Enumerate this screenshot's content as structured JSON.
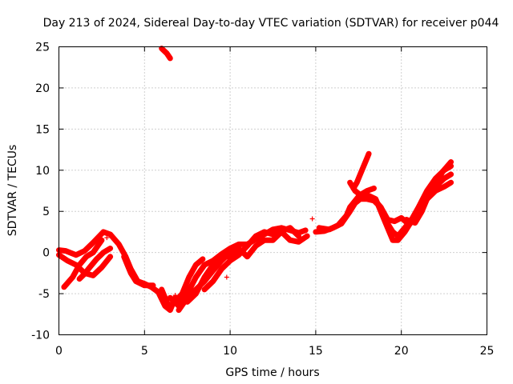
{
  "chart_data": {
    "type": "scatter",
    "title": "Day 213 of 2024, Sidereal Day-to-day VTEC variation (SDTVAR) for receiver p044",
    "xlabel": "GPS time / hours",
    "ylabel": "SDTVAR / TECUs",
    "xlim": [
      0,
      25
    ],
    "ylim": [
      -10,
      25
    ],
    "xticks": [
      "0",
      "5",
      "10",
      "15",
      "20",
      "25"
    ],
    "yticks": [
      "-10",
      "-5",
      "0",
      "5",
      "10",
      "15",
      "20",
      "25"
    ],
    "grid": true,
    "marker": "+",
    "series_color": "#ff0000",
    "tracks": [
      [
        [
          0.0,
          0.3
        ],
        [
          0.4,
          0.2
        ],
        [
          1.0,
          -0.3
        ],
        [
          1.5,
          0.2
        ],
        [
          2.0,
          1.2
        ],
        [
          2.6,
          2.5
        ],
        [
          3.0,
          2.2
        ],
        [
          3.5,
          1.0
        ],
        [
          3.9,
          -0.5
        ],
        [
          4.2,
          -2.0
        ],
        [
          4.6,
          -3.5
        ],
        [
          5.0,
          -3.8
        ],
        [
          5.4,
          -4.2
        ],
        [
          5.8,
          -4.8
        ],
        [
          6.2,
          -6.5
        ],
        [
          6.5,
          -7.0
        ],
        [
          6.8,
          -5.5
        ]
      ],
      [
        [
          0.0,
          -0.3
        ],
        [
          0.5,
          -1.0
        ],
        [
          1.0,
          -1.5
        ],
        [
          1.5,
          -2.5
        ],
        [
          2.0,
          -2.8
        ],
        [
          2.5,
          -1.8
        ],
        [
          3.0,
          -0.5
        ]
      ],
      [
        [
          0.3,
          -4.2
        ],
        [
          0.8,
          -3.0
        ],
        [
          1.2,
          -1.5
        ],
        [
          1.6,
          -0.5
        ],
        [
          2.0,
          0.0
        ],
        [
          2.5,
          1.5
        ]
      ],
      [
        [
          1.2,
          -3.2
        ],
        [
          1.5,
          -2.6
        ],
        [
          1.8,
          -1.8
        ],
        [
          2.2,
          -0.8
        ],
        [
          2.6,
          0.0
        ],
        [
          3.0,
          0.5
        ]
      ],
      [
        [
          3.8,
          -0.5
        ],
        [
          4.0,
          -1.5
        ],
        [
          4.2,
          -2.5
        ],
        [
          4.5,
          -3.5
        ],
        [
          5.0,
          -4.0
        ],
        [
          5.5,
          -4.0
        ]
      ],
      [
        [
          6.0,
          -4.5
        ],
        [
          6.4,
          -6.5
        ],
        [
          6.8,
          -6.0
        ],
        [
          7.2,
          -5.0
        ],
        [
          7.6,
          -3.0
        ],
        [
          8.0,
          -1.5
        ],
        [
          8.4,
          -0.8
        ]
      ],
      [
        [
          6.5,
          -5.5
        ],
        [
          7.0,
          -6.5
        ],
        [
          7.5,
          -5.0
        ],
        [
          8.0,
          -3.0
        ],
        [
          8.5,
          -1.5
        ],
        [
          9.0,
          -1.0
        ],
        [
          9.5,
          -0.2
        ],
        [
          10.0,
          0.5
        ],
        [
          10.5,
          1.0
        ],
        [
          11.0,
          1.0
        ],
        [
          11.5,
          1.6
        ],
        [
          12.0,
          2.2
        ],
        [
          12.5,
          2.8
        ],
        [
          13.0,
          3.0
        ],
        [
          13.5,
          2.7
        ],
        [
          14.0,
          2.4
        ],
        [
          14.4,
          2.7
        ]
      ],
      [
        [
          7.0,
          -7.0
        ],
        [
          7.5,
          -5.5
        ],
        [
          8.0,
          -4.5
        ],
        [
          8.5,
          -3.5
        ],
        [
          9.0,
          -2.2
        ],
        [
          9.5,
          -1.0
        ],
        [
          10.0,
          0.0
        ],
        [
          10.5,
          0.3
        ]
      ],
      [
        [
          7.5,
          -6.0
        ],
        [
          8.0,
          -5.0
        ],
        [
          8.5,
          -3.0
        ],
        [
          9.0,
          -1.5
        ],
        [
          9.5,
          -0.5
        ],
        [
          10.0,
          -0.5
        ],
        [
          10.5,
          0.5
        ],
        [
          11.0,
          -0.5
        ],
        [
          11.5,
          0.8
        ],
        [
          12.0,
          1.5
        ],
        [
          12.5,
          1.5
        ],
        [
          13.0,
          2.5
        ],
        [
          13.5,
          1.5
        ],
        [
          14.0,
          1.3
        ],
        [
          14.5,
          2.0
        ]
      ],
      [
        [
          8.5,
          -4.5
        ],
        [
          9.0,
          -3.5
        ],
        [
          9.5,
          -2.0
        ],
        [
          10.0,
          -1.0
        ],
        [
          10.5,
          -0.3
        ],
        [
          11.0,
          0.8
        ],
        [
          11.5,
          2.0
        ],
        [
          12.0,
          2.5
        ],
        [
          12.5,
          2.2
        ],
        [
          13.0,
          2.6
        ],
        [
          13.5,
          3.0
        ],
        [
          14.0,
          2.0
        ]
      ],
      [
        [
          15.0,
          2.5
        ],
        [
          15.5,
          2.6
        ],
        [
          16.0,
          3.0
        ],
        [
          16.5,
          3.5
        ],
        [
          17.0,
          5.0
        ],
        [
          17.3,
          6.0
        ],
        [
          17.6,
          6.5
        ],
        [
          18.0,
          6.5
        ],
        [
          18.4,
          6.3
        ],
        [
          18.8,
          5.5
        ],
        [
          19.2,
          4.0
        ],
        [
          19.6,
          3.8
        ],
        [
          20.0,
          4.2
        ],
        [
          20.4,
          3.5
        ],
        [
          20.8,
          4.5
        ]
      ],
      [
        [
          15.2,
          3.0
        ],
        [
          15.8,
          2.8
        ],
        [
          16.3,
          3.3
        ],
        [
          16.8,
          4.5
        ],
        [
          17.0,
          5.5
        ],
        [
          17.5,
          6.8
        ],
        [
          18.0,
          7.0
        ],
        [
          18.5,
          6.5
        ],
        [
          19.0,
          4.0
        ],
        [
          19.3,
          2.5
        ],
        [
          19.5,
          1.5
        ],
        [
          19.8,
          1.5
        ],
        [
          20.2,
          2.5
        ],
        [
          20.5,
          3.5
        ],
        [
          21.0,
          5.0
        ],
        [
          21.5,
          6.5
        ],
        [
          22.0,
          7.5
        ],
        [
          22.5,
          8.0
        ],
        [
          22.9,
          8.5
        ]
      ],
      [
        [
          17.0,
          8.5
        ],
        [
          17.3,
          7.5
        ],
        [
          17.6,
          7.0
        ],
        [
          18.0,
          7.5
        ],
        [
          18.4,
          7.8
        ]
      ],
      [
        [
          17.2,
          7.8
        ],
        [
          17.4,
          8.5
        ],
        [
          17.6,
          9.5
        ],
        [
          17.8,
          10.5
        ],
        [
          18.0,
          11.5
        ],
        [
          18.1,
          12.0
        ]
      ],
      [
        [
          18.4,
          6.5
        ],
        [
          18.8,
          5.5
        ],
        [
          19.2,
          3.5
        ],
        [
          19.5,
          2.5
        ],
        [
          19.8,
          2.0
        ],
        [
          20.2,
          3.0
        ],
        [
          20.6,
          4.0
        ],
        [
          21.0,
          5.5
        ],
        [
          21.5,
          7.5
        ],
        [
          22.0,
          9.0
        ],
        [
          22.5,
          10.0
        ],
        [
          22.9,
          10.5
        ]
      ],
      [
        [
          20.5,
          3.5
        ],
        [
          21.0,
          4.5
        ],
        [
          21.5,
          6.5
        ],
        [
          22.0,
          8.0
        ],
        [
          22.5,
          9.0
        ],
        [
          22.9,
          9.5
        ]
      ],
      [
        [
          20.3,
          4.0
        ],
        [
          20.8,
          3.6
        ],
        [
          21.2,
          5.0
        ],
        [
          21.6,
          7.0
        ],
        [
          22.0,
          8.2
        ],
        [
          22.4,
          9.8
        ],
        [
          22.9,
          11.0
        ]
      ],
      [
        [
          6.0,
          24.8
        ],
        [
          6.3,
          24.2
        ],
        [
          6.5,
          23.6
        ]
      ]
    ],
    "isolated_points": [
      [
        14.8,
        4.1
      ],
      [
        9.8,
        -3.0
      ],
      [
        6.8,
        -5.2
      ],
      [
        2.8,
        1.8
      ]
    ]
  }
}
